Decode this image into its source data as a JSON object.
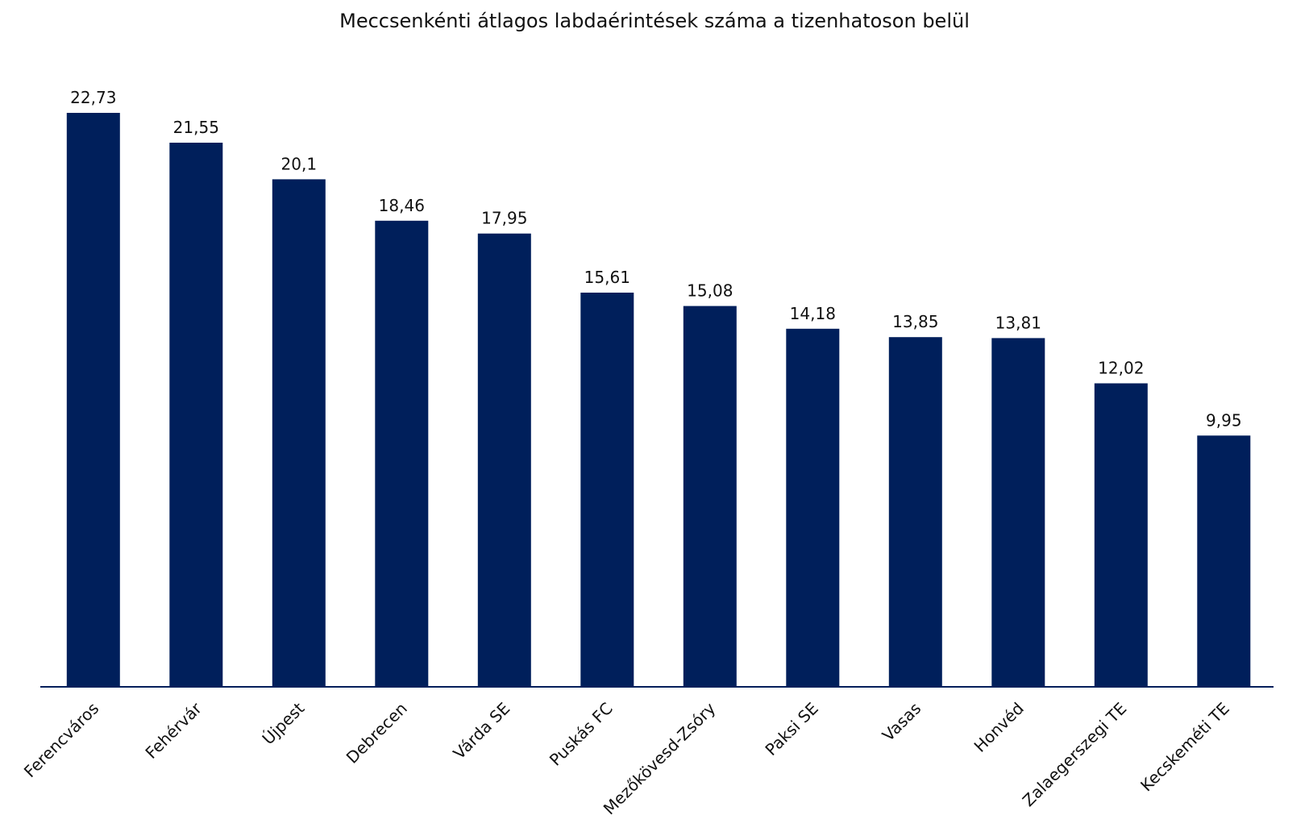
{
  "chart_data": {
    "type": "bar",
    "title": "Meccsenkénti átlagos labdaérintések száma a tizenhatoson belül",
    "xlabel": "",
    "ylabel": "",
    "categories": [
      "Ferencváros",
      "Fehérvár",
      "Újpest",
      "Debrecen",
      "Várda SE",
      "Puskás FC",
      "Mezőkövesd-Zsóry",
      "Paksi SE",
      "Vasas",
      "Honvéd",
      "Zalaegerszegi TE",
      "Kecskeméti TE"
    ],
    "values": [
      22.73,
      21.55,
      20.1,
      18.46,
      17.95,
      15.61,
      15.08,
      14.18,
      13.85,
      13.81,
      12.02,
      9.95
    ],
    "value_labels": [
      "22,73",
      "21,55",
      "20,1",
      "18,46",
      "17,95",
      "15,61",
      "15,08",
      "14,18",
      "13,85",
      "13,81",
      "12,02",
      "9,95"
    ],
    "ylim": [
      0,
      26
    ],
    "grid": false,
    "legend": "none",
    "bar_color": "#001f5b",
    "axis_color": "#001f5b"
  }
}
